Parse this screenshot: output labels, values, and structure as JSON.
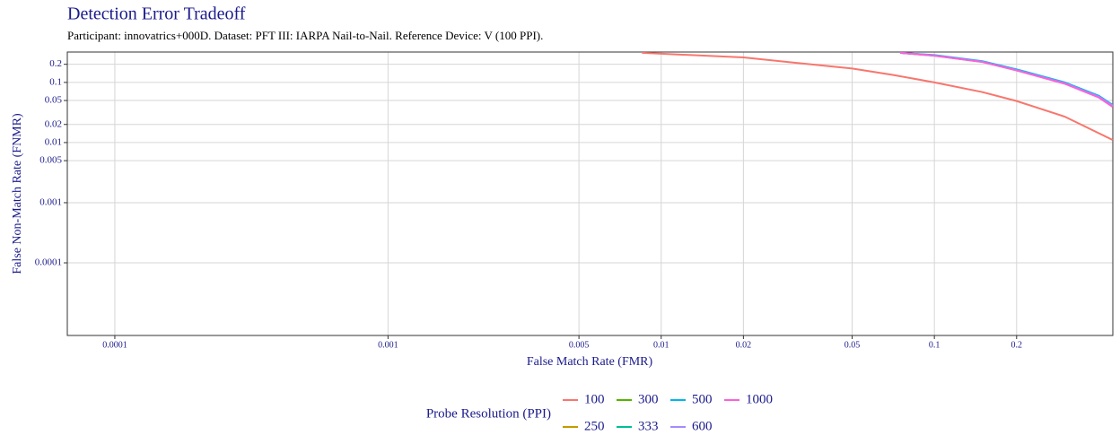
{
  "chart_data": {
    "type": "line",
    "title": "Detection Error Tradeoff",
    "subtitle": "Participant: innovatrics+000D. Dataset: PFT III: IARPA Nail-to-Nail. Reference Device: V (100 PPI).",
    "x_label": "False Match Rate (FMR)",
    "y_label": "False Non-Match Rate (FNMR)",
    "legend_title": "Probe Resolution (PPI)",
    "x_log": true,
    "y_log": true,
    "grid": true,
    "xlim": [
      6.7e-05,
      0.45
    ],
    "ylim": [
      6.2e-06,
      0.32
    ],
    "xticks": [
      0.0001,
      0.001,
      0.005,
      0.01,
      0.02,
      0.05,
      0.1,
      0.2
    ],
    "yticks": [
      0.0001,
      0.001,
      0.005,
      0.01,
      0.02,
      0.05,
      0.1,
      0.2
    ],
    "series": [
      {
        "name": "100",
        "color": "#F8766D",
        "x": [
          0.0085,
          0.01,
          0.02,
          0.05,
          0.07,
          0.1,
          0.15,
          0.2,
          0.3,
          0.45
        ],
        "values": [
          0.31,
          0.3,
          0.26,
          0.17,
          0.134,
          0.1,
          0.069,
          0.049,
          0.027,
          0.011
        ]
      },
      {
        "name": "250",
        "color": "#C49A00",
        "x": [
          0.075,
          0.1,
          0.15,
          0.2,
          0.3,
          0.4,
          0.45
        ],
        "values": [
          0.31,
          0.279,
          0.219,
          0.159,
          0.096,
          0.057,
          0.04
        ]
      },
      {
        "name": "300",
        "color": "#53B400",
        "x": [
          0.075,
          0.1,
          0.15,
          0.2,
          0.3,
          0.4,
          0.45
        ],
        "values": [
          0.31,
          0.28,
          0.22,
          0.16,
          0.097,
          0.058,
          0.041
        ]
      },
      {
        "name": "333",
        "color": "#00C094",
        "x": [
          0.075,
          0.1,
          0.15,
          0.2,
          0.3,
          0.4,
          0.45
        ],
        "values": [
          0.31,
          0.281,
          0.221,
          0.161,
          0.098,
          0.058,
          0.041
        ]
      },
      {
        "name": "500",
        "color": "#00B6EB",
        "x": [
          0.075,
          0.1,
          0.15,
          0.2,
          0.3,
          0.4,
          0.45
        ],
        "values": [
          0.31,
          0.285,
          0.225,
          0.165,
          0.1,
          0.06,
          0.042
        ]
      },
      {
        "name": "600",
        "color": "#A58AFF",
        "x": [
          0.075,
          0.1,
          0.15,
          0.2,
          0.3,
          0.4,
          0.45
        ],
        "values": [
          0.31,
          0.28,
          0.22,
          0.16,
          0.097,
          0.058,
          0.041
        ]
      },
      {
        "name": "1000",
        "color": "#FB61D7",
        "x": [
          0.075,
          0.1,
          0.15,
          0.2,
          0.3,
          0.4,
          0.45
        ],
        "values": [
          0.31,
          0.278,
          0.218,
          0.158,
          0.095,
          0.056,
          0.039
        ]
      }
    ]
  }
}
